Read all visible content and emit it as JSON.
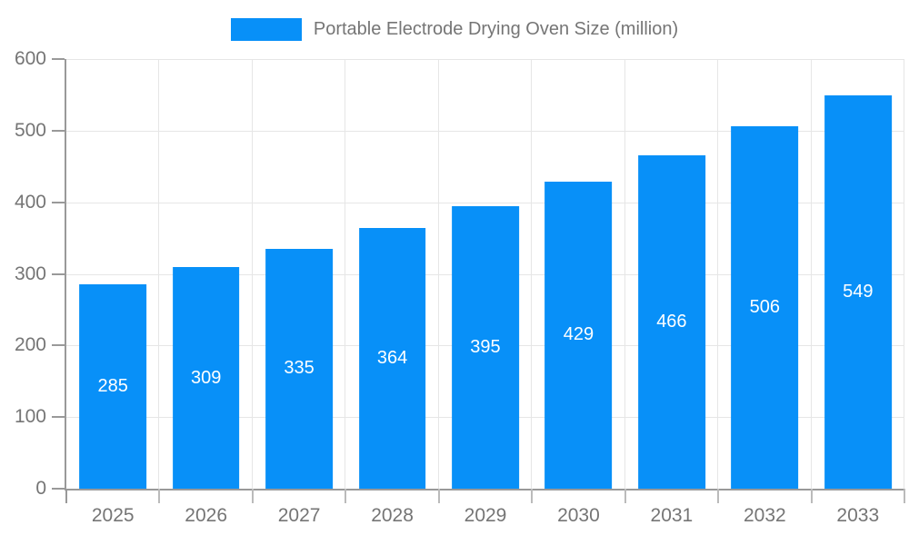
{
  "legend": {
    "label": "Portable Electrode Drying Oven Size (million)"
  },
  "chart_data": {
    "type": "bar",
    "title": "Portable Electrode Drying Oven Size (million)",
    "series_name": "Portable Electrode Drying Oven Size (million)",
    "categories": [
      "2025",
      "2026",
      "2027",
      "2028",
      "2029",
      "2030",
      "2031",
      "2032",
      "2033"
    ],
    "values": [
      285,
      309,
      335,
      364,
      395,
      429,
      466,
      506,
      549
    ],
    "value_labels": [
      "285",
      "309",
      "335",
      "364",
      "395",
      "429",
      "466",
      "506",
      "549"
    ],
    "xlabel": "",
    "ylabel": "",
    "ylim": [
      0,
      600
    ],
    "yticks": [
      0,
      100,
      200,
      300,
      400,
      500,
      600
    ],
    "grid": true,
    "legend_position": "top-center",
    "colors": {
      "bar": "#0890F8",
      "grid": "#E6E6E6",
      "axis_line": "#999999",
      "x_tick": "#bbbbbb",
      "tick_label": "#757575",
      "value_label": "#FFFFFF",
      "background": "#FFFFFF"
    }
  }
}
